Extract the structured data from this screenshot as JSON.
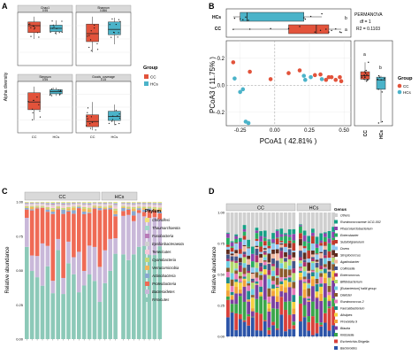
{
  "colors": {
    "cc": "#e2533b",
    "hcs": "#4bb3c9"
  },
  "panels": {
    "a": "A",
    "b": "B",
    "c": "C",
    "d": "D"
  },
  "chart_data": [
    {
      "panel": "A",
      "type": "box",
      "ylabel": "Alpha diversity",
      "groups": [
        "CC",
        "HCs"
      ],
      "legend_title": "Group",
      "legend": [
        "CC",
        "HCs"
      ],
      "facets": [
        {
          "title": "Chao1",
          "p": "0.95",
          "boxes": [
            [
              0.5,
              0.62,
              0.75,
              0.82,
              0.92
            ],
            [
              0.58,
              0.64,
              0.7,
              0.76,
              0.85
            ]
          ]
        },
        {
          "title": "Shannon",
          "p": "0.856",
          "boxes": [
            [
              0.25,
              0.45,
              0.6,
              0.78,
              0.92
            ],
            [
              0.4,
              0.58,
              0.68,
              0.82,
              0.9
            ]
          ]
        },
        {
          "title": "Simpson",
          "p": "0.95",
          "boxes": [
            [
              0.25,
              0.45,
              0.6,
              0.78,
              0.9
            ],
            [
              0.72,
              0.76,
              0.8,
              0.84,
              0.88
            ]
          ]
        },
        {
          "title": "Goods_coverage",
          "p": "0.15",
          "boxes": [
            [
              0.05,
              0.12,
              0.22,
              0.35,
              0.6
            ],
            [
              0.15,
              0.24,
              0.32,
              0.42,
              0.55
            ]
          ]
        }
      ]
    },
    {
      "panel": "B",
      "type": "scatter",
      "xlabel": "PCoA1 ( 42.81% )",
      "ylabel": "PCoA3 ( 11.75% )",
      "xticks": [
        "-0.25",
        "0.00",
        "0.25",
        "0.50"
      ],
      "yticks": [
        "-0.2",
        "0.0",
        "0.2"
      ],
      "xlim": [
        -0.35,
        0.55
      ],
      "ylim": [
        -0.3,
        0.33
      ],
      "annotation": [
        "PERMANOVA",
        "df = 1",
        "R2 = 0.1103"
      ],
      "legend_title": "Group",
      "legend": [
        "CC",
        "HCs"
      ],
      "top_box_labels": [
        "HCs",
        "CC"
      ],
      "side_box_labels": [
        "CC",
        "HCs"
      ],
      "sig_letters": [
        "a",
        "b"
      ],
      "points": [
        {
          "x": -0.3,
          "y": 0.17,
          "g": "CC"
        },
        {
          "x": 0.1,
          "y": 0.09,
          "g": "CC"
        },
        {
          "x": 0.18,
          "y": 0.11,
          "g": "CC"
        },
        {
          "x": 0.29,
          "y": 0.075,
          "g": "CC"
        },
        {
          "x": 0.33,
          "y": 0.08,
          "g": "CC"
        },
        {
          "x": 0.37,
          "y": 0.04,
          "g": "CC"
        },
        {
          "x": 0.39,
          "y": 0.06,
          "g": "CC"
        },
        {
          "x": 0.41,
          "y": 0.06,
          "g": "CC"
        },
        {
          "x": 0.44,
          "y": 0.04,
          "g": "CC"
        },
        {
          "x": 0.48,
          "y": 0.03,
          "g": "CC"
        },
        {
          "x": 0.47,
          "y": 0.06,
          "g": "CC"
        },
        {
          "x": -0.03,
          "y": 0.045,
          "g": "CC"
        },
        {
          "x": -0.18,
          "y": 0.1,
          "g": "CC"
        },
        {
          "x": -0.29,
          "y": 0.05,
          "g": "HCs"
        },
        {
          "x": -0.25,
          "y": -0.05,
          "g": "HCs"
        },
        {
          "x": -0.23,
          "y": -0.03,
          "g": "HCs"
        },
        {
          "x": -0.21,
          "y": -0.27,
          "g": "HCs"
        },
        {
          "x": -0.19,
          "y": -0.28,
          "g": "HCs"
        },
        {
          "x": 0.21,
          "y": 0.07,
          "g": "HCs"
        },
        {
          "x": 0.22,
          "y": 0.04,
          "g": "HCs"
        },
        {
          "x": 0.26,
          "y": 0.06,
          "g": "HCs"
        },
        {
          "x": 0.34,
          "y": 0.045,
          "g": "HCs"
        }
      ]
    },
    {
      "panel": "C",
      "type": "stacked-bar",
      "ylabel": "Relative abundance",
      "yticks": [
        "0.00",
        "0.25",
        "0.50",
        "0.75",
        "1.00"
      ],
      "groups": [
        "CC",
        "HCs"
      ],
      "legend_title": "Phylum",
      "legend": [
        "Chloroflexi",
        "Thaumarchaeota",
        "Fusobacteria",
        "Epsilonbacteraeota",
        "Tenericutes",
        "Cyanobacteria",
        "Verrucomicrobia",
        "Actinobacteria",
        "Proteobacteria",
        "Bacteroidetes",
        "Firmicutes"
      ]
    },
    {
      "panel": "D",
      "type": "stacked-bar",
      "ylabel": "Relative abundance",
      "yticks": [
        "0.00",
        "0.25",
        "0.50",
        "0.75",
        "1.00"
      ],
      "groups": [
        "CC",
        "HCs"
      ],
      "legend_title": "Genus",
      "legend": [
        "Others",
        "Ruminococcaceae UCG-002",
        "Phascolarctobacterium",
        "Enterobacter",
        "Subdoligranulum",
        "Dorea",
        "Streptococcus",
        "Agathobacter",
        "Collinsella",
        "Enterococcus",
        "Bifidobacterium",
        "[Eubacterium] hallii group",
        "Dialister",
        "Ruminococcus 2",
        "Faecalibacterium",
        "Alistipes",
        "Prevotella 9",
        "Blautia",
        "Klebsiella",
        "Escherichia-Shigella",
        "Bacteroides"
      ]
    }
  ]
}
